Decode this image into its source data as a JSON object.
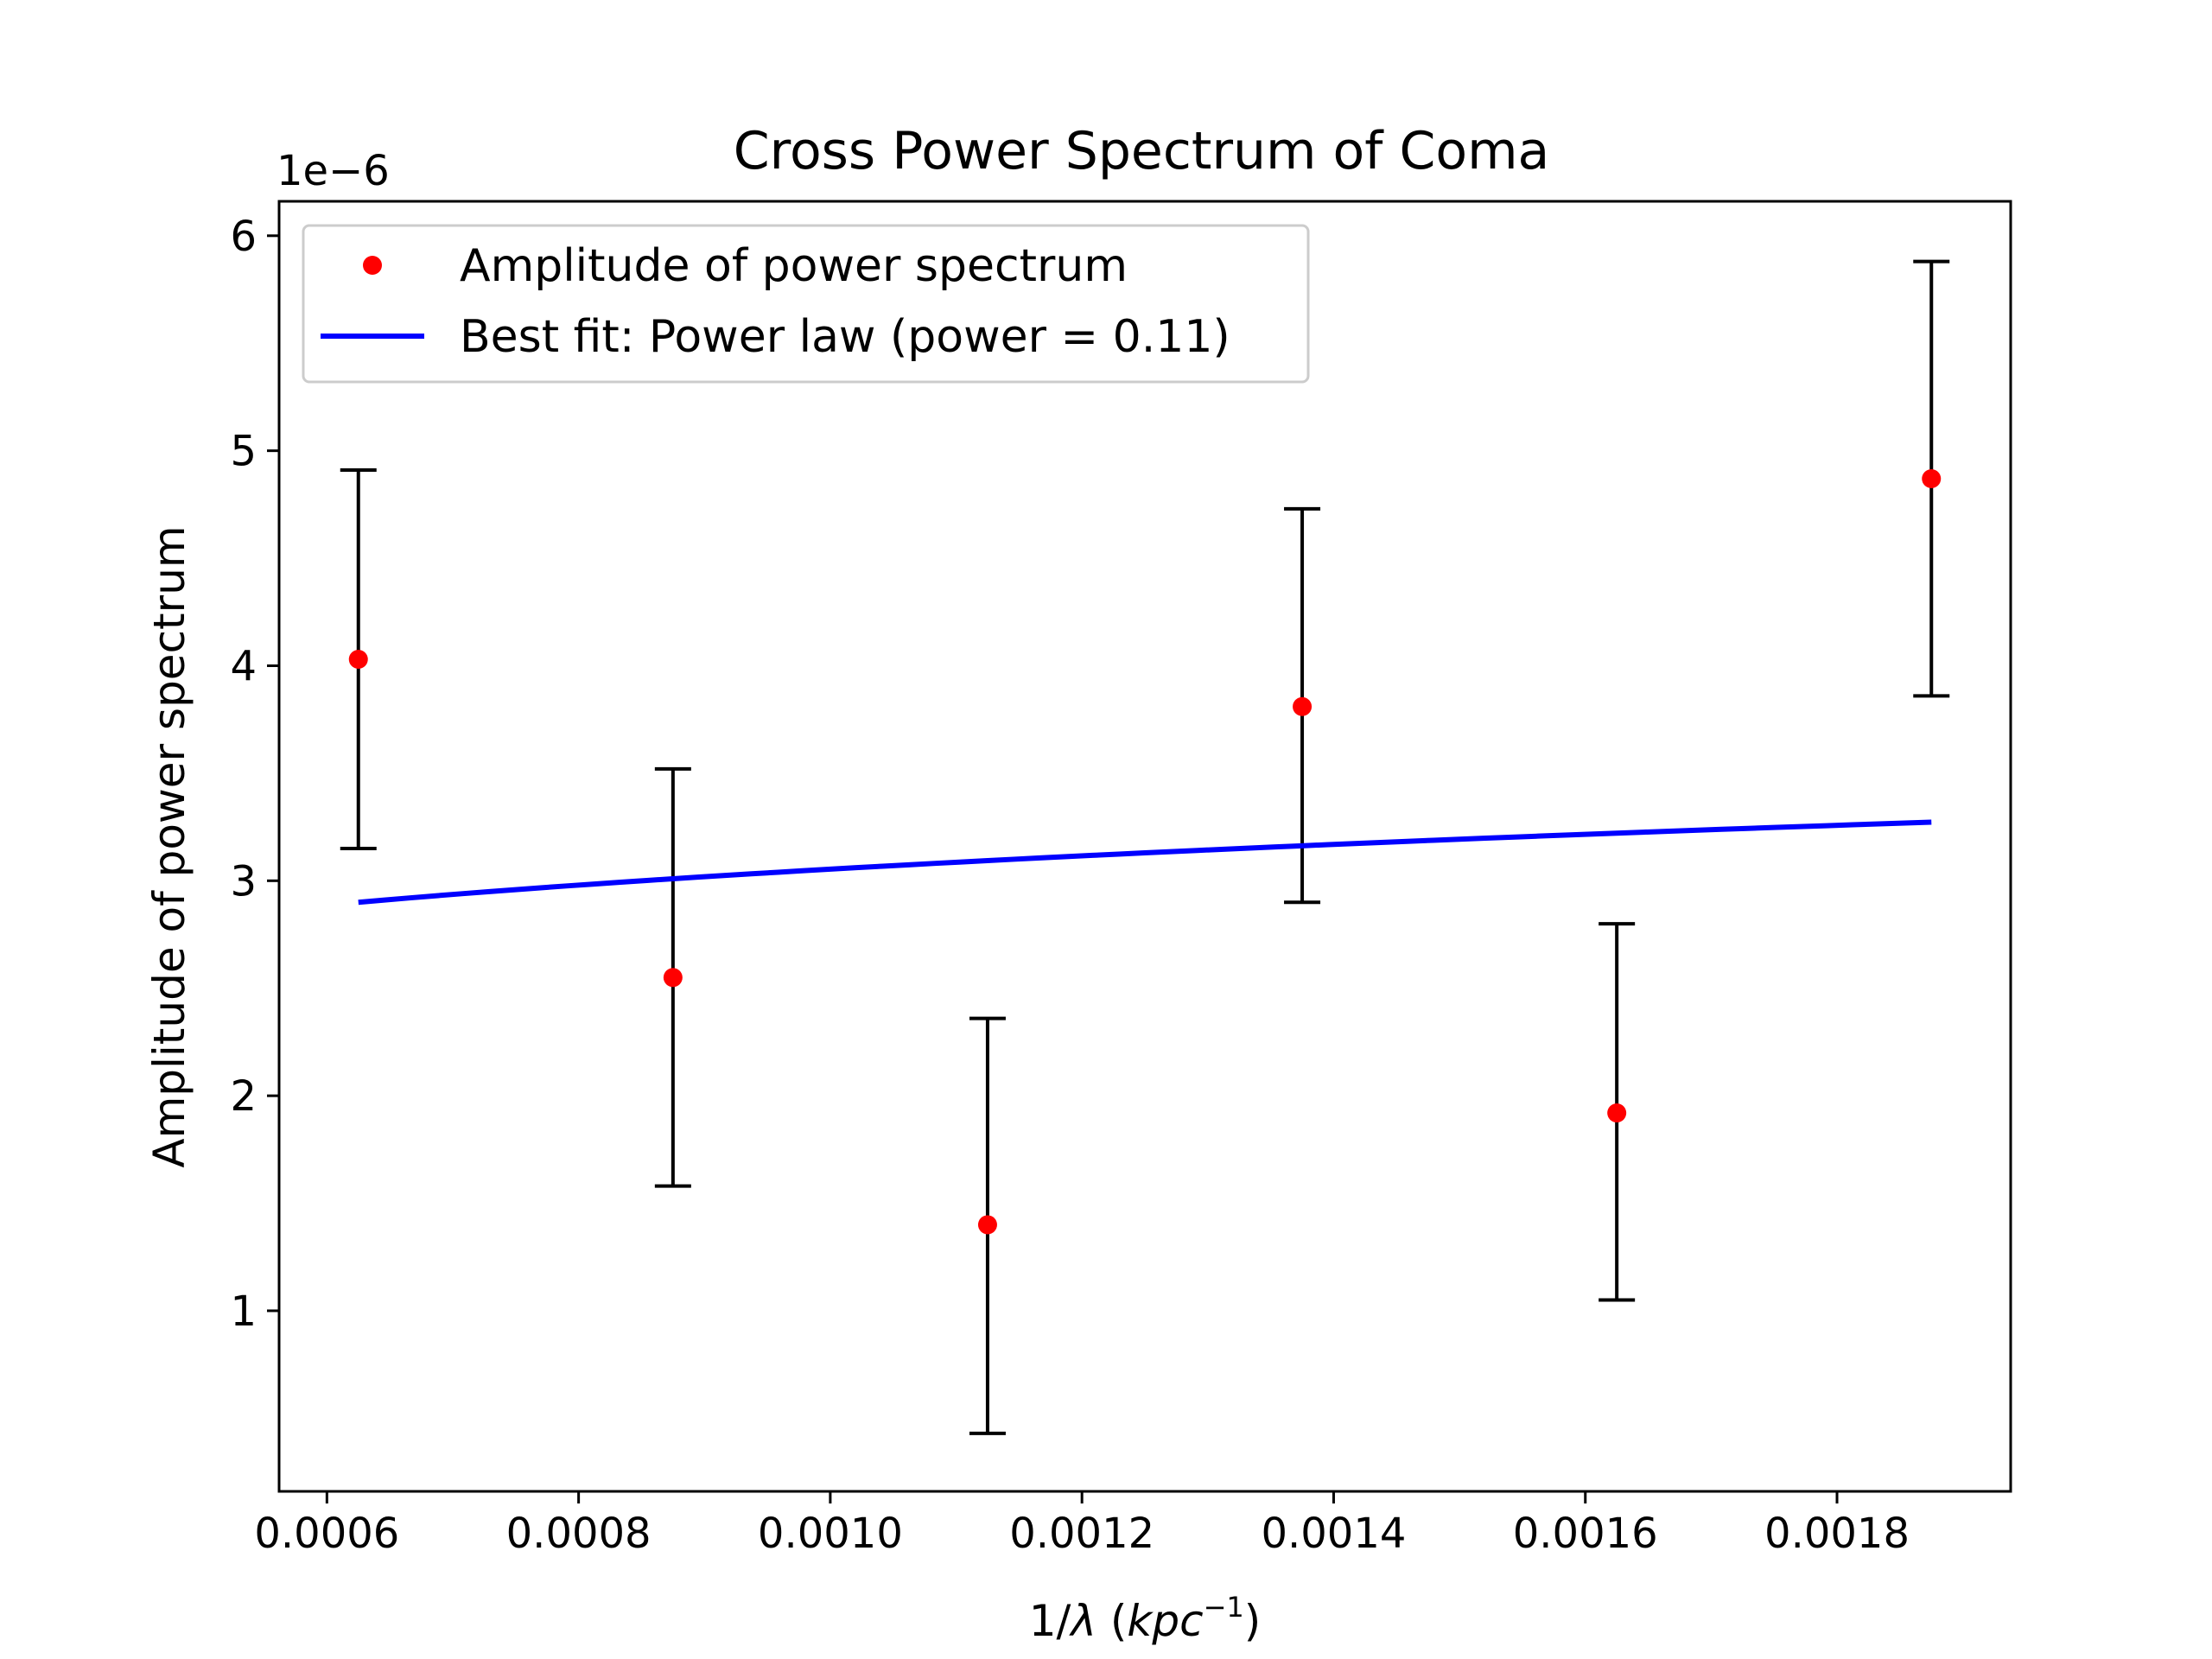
{
  "chart_data": {
    "type": "scatter",
    "title": "Cross Power Spectrum of Coma",
    "xlabel": "1/λ (kpc⁻¹)",
    "xlabel_parts": {
      "prefix": "1/",
      "lambda": "λ",
      "open": " (",
      "unit": "kpc",
      "exp": "−1",
      "close": ")"
    },
    "ylabel": "Amplitude of power spectrum",
    "y_offset_label": "1e−6",
    "y_scale": 1e-06,
    "xlim": [
      0.000562,
      0.001938
    ],
    "ylim": [
      0.16,
      6.16
    ],
    "xticks": [
      0.0006,
      0.0008,
      0.001,
      0.0012,
      0.0014,
      0.0016,
      0.0018
    ],
    "xtick_labels": [
      "0.0006",
      "0.0008",
      "0.0010",
      "0.0012",
      "0.0014",
      "0.0016",
      "0.0018"
    ],
    "yticks": [
      1,
      2,
      3,
      4,
      5,
      6
    ],
    "ytick_labels": [
      "1",
      "2",
      "3",
      "4",
      "5",
      "6"
    ],
    "grid": false,
    "legend_position": "top-left",
    "series": [
      {
        "name": "Amplitude of power spectrum",
        "kind": "points_with_errorbars",
        "color": "#ff0000",
        "errorbar_color": "#000000",
        "x": [
          0.000625,
          0.000875,
          0.001125,
          0.001375,
          0.001625,
          0.001875
        ],
        "y": [
          4.03,
          2.55,
          1.4,
          3.81,
          1.92,
          4.87
        ],
        "yerr_low": [
          3.15,
          1.58,
          0.43,
          2.9,
          1.05,
          3.86
        ],
        "yerr_high": [
          4.91,
          3.52,
          2.36,
          4.73,
          2.8,
          5.88
        ]
      },
      {
        "name": "Best fit: Power law (power = 0.11)",
        "kind": "line",
        "color": "#0000ff",
        "power": 0.11,
        "x_range": [
          0.000625,
          0.001875
        ],
        "y_at_start": 2.9
      }
    ]
  }
}
